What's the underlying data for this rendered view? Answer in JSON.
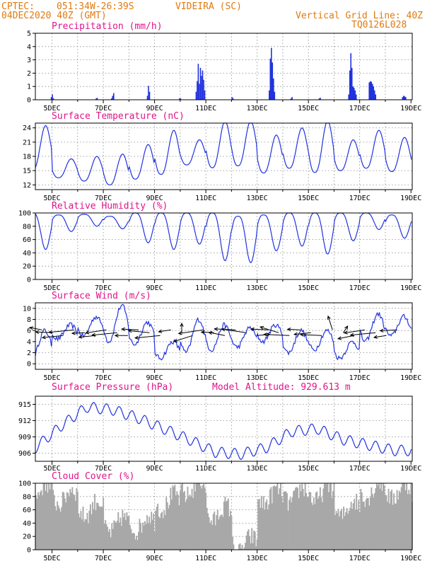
{
  "header": {
    "source": "CPTEC:",
    "coords": "051:34W-26:39S",
    "place": "VIDEIRA (SC)",
    "run": "04DEC2020 40Z (GMT)",
    "grid_note": "Vertical Grid Line: 40Z",
    "code": "TQ0126L028"
  },
  "colors": {
    "header": "#e07a10",
    "title": "#e0148c",
    "line": "#2233dd",
    "cloud": "#a8a8a8",
    "arrow": "#000000"
  },
  "chart_data": [
    {
      "type": "bar",
      "title": "Precipitation (mm/h)",
      "x_labels": [
        "5DEC",
        "7DEC",
        "9DEC",
        "11DEC",
        "13DEC",
        "15DEC",
        "17DEC",
        "19DEC"
      ],
      "ylim": [
        0,
        5
      ],
      "yticks": [
        0,
        1,
        2,
        3,
        4,
        5
      ],
      "bursts": [
        {
          "day": 4.95,
          "values": [
            0.2,
            0.4,
            0.1
          ]
        },
        {
          "day": 6.7,
          "values": [
            0.1,
            0.15
          ]
        },
        {
          "day": 7.3,
          "values": [
            0.1,
            0.3,
            0.5
          ]
        },
        {
          "day": 8.7,
          "values": [
            0.3,
            1.05,
            0.6
          ]
        },
        {
          "day": 9.95,
          "values": [
            0.1,
            0.1
          ]
        },
        {
          "day": 10.6,
          "values": [
            0.6,
            1.4,
            2.7,
            1.2,
            2.4,
            1.8,
            2.2,
            1.5,
            0.7
          ]
        },
        {
          "day": 12.0,
          "values": [
            0.2,
            0.1
          ]
        },
        {
          "day": 13.45,
          "values": [
            0.7,
            3.1,
            3.9,
            2.8,
            1.6,
            0.6
          ]
        },
        {
          "day": 14.3,
          "values": [
            0.1,
            0.2
          ]
        },
        {
          "day": 15.4,
          "values": [
            0.1,
            0.15
          ]
        },
        {
          "day": 16.55,
          "values": [
            0.4,
            2.2,
            3.5,
            2.4,
            1.0,
            0.9,
            0.7,
            0.4
          ]
        },
        {
          "day": 17.35,
          "values": [
            1.3,
            1.4,
            1.35,
            1.2,
            1.0,
            0.7,
            0.4
          ]
        },
        {
          "day": 18.65,
          "values": [
            0.2,
            0.3,
            0.25,
            0.2
          ]
        }
      ]
    },
    {
      "type": "line",
      "title": "Surface Temperature (nC)",
      "x_labels": [
        "5DEC",
        "7DEC",
        "9DEC",
        "11DEC",
        "13DEC",
        "15DEC",
        "17DEC",
        "19DEC"
      ],
      "ylim": [
        11,
        25
      ],
      "yticks": [
        12,
        15,
        18,
        21,
        24
      ],
      "daily_min": [
        15.2,
        13.5,
        12.8,
        12.0,
        13.2,
        14.2,
        16.2,
        15.6,
        16.0,
        14.5,
        15.5,
        14.6,
        15.0,
        15.5,
        14.8
      ],
      "daily_max": [
        24.5,
        17.5,
        18.0,
        18.5,
        20.5,
        23.5,
        21.5,
        25.5,
        25.5,
        22.5,
        24.0,
        25.5,
        21.5,
        23.5,
        22.0
      ]
    },
    {
      "type": "line",
      "title": "Relative Humidity (%)",
      "x_labels": [
        "5DEC",
        "7DEC",
        "9DEC",
        "11DEC",
        "13DEC",
        "15DEC",
        "17DEC",
        "19DEC"
      ],
      "ylim": [
        0,
        100
      ],
      "yticks": [
        0,
        20,
        40,
        60,
        80,
        100
      ],
      "daily_min": [
        45,
        72,
        80,
        76,
        55,
        45,
        53,
        28,
        25,
        43,
        50,
        38,
        58,
        75,
        62
      ],
      "daily_max": [
        100,
        97,
        98,
        95,
        100,
        100,
        100,
        100,
        95,
        97,
        100,
        100,
        100,
        100,
        97
      ]
    },
    {
      "type": "line",
      "title": "Surface Wind (m/s)",
      "x_labels": [
        "5DEC",
        "7DEC",
        "9DEC",
        "11DEC",
        "13DEC",
        "15DEC",
        "17DEC",
        "19DEC"
      ],
      "ylim": [
        -1,
        11
      ],
      "yticks": [
        0,
        2,
        4,
        6,
        8,
        10
      ],
      "daily_min": [
        1.0,
        4.5,
        5.0,
        4.0,
        3.5,
        1.0,
        2.0,
        2.5,
        3.0,
        4.0,
        2.0,
        2.5,
        1.0,
        4.0,
        5.0
      ],
      "daily_max": [
        6.0,
        7.0,
        8.5,
        10.5,
        7.5,
        4.0,
        8.0,
        7.0,
        6.5,
        7.0,
        6.0,
        6.0,
        4.0,
        9.0,
        8.5
      ],
      "arrows_deg": [
        110,
        95,
        80,
        80,
        85,
        80,
        75,
        80,
        90,
        95,
        100,
        80,
        75,
        180,
        60,
        75,
        95,
        110,
        95,
        105,
        260,
        95,
        120,
        95,
        95,
        80,
        95,
        170,
        200,
        70,
        75,
        80,
        75,
        85
      ]
    },
    {
      "type": "line",
      "title": "Surface Pressure (hPa)",
      "model_altitude": "Model Altitude: 929.613 m",
      "x_labels": [
        "5DEC",
        "7DEC",
        "9DEC",
        "11DEC",
        "13DEC",
        "15DEC",
        "17DEC",
        "19DEC"
      ],
      "ylim": [
        904.5,
        916.5
      ],
      "yticks": [
        906,
        909,
        912,
        915
      ],
      "trend": [
        907.0,
        911.0,
        914.5,
        914.0,
        912.5,
        910.5,
        908.5,
        906.2,
        905.8,
        907.0,
        910.0,
        910.5,
        908.5,
        907.5,
        906.5,
        906.5
      ],
      "diurnal_amp": 1.0
    },
    {
      "type": "area",
      "title": "Cloud Cover (%)",
      "x_labels": [
        "5DEC",
        "7DEC",
        "9DEC",
        "11DEC",
        "13DEC",
        "15DEC",
        "17DEC",
        "19DEC"
      ],
      "ylim": [
        0,
        100
      ],
      "yticks": [
        0,
        20,
        40,
        60,
        80,
        100
      ],
      "daily_cover": [
        88,
        80,
        62,
        38,
        40,
        72,
        93,
        55,
        8,
        80,
        82,
        85,
        62,
        90,
        88
      ]
    }
  ]
}
